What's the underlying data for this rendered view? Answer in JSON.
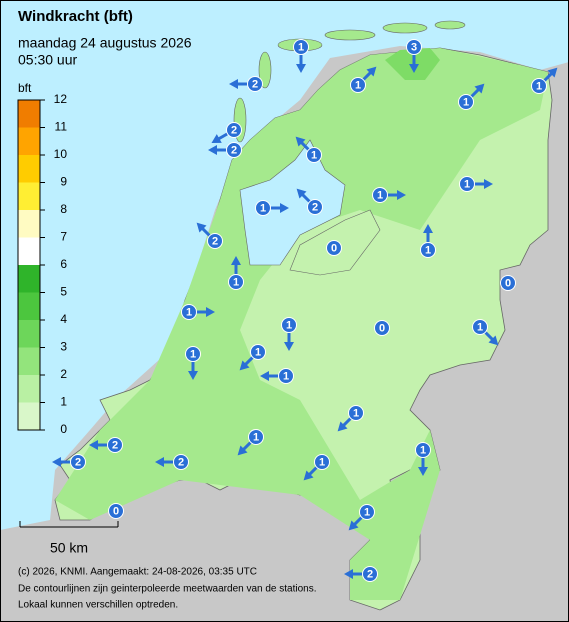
{
  "header": {
    "title": "Windkracht (bft)",
    "date": "maandag 24 augustus 2026",
    "time": "05:30 uur"
  },
  "legend": {
    "unit": "bft",
    "levels": [
      0,
      1,
      2,
      3,
      4,
      5,
      6,
      7,
      8,
      9,
      10,
      11,
      12
    ],
    "colors": [
      "#d9f7c9",
      "#b9f0a3",
      "#93e47c",
      "#6dd65a",
      "#4cc63e",
      "#2fb42a",
      "#ffffff",
      "#fffbc2",
      "#ffee33",
      "#ffcc00",
      "#ffa400",
      "#f07d00"
    ]
  },
  "scale_bar": "50 km",
  "footer": [
    "(c) 2026, KNMI. Aangemaakt: 24-08-2026, 03:35 UTC",
    "De contourlijnen zijn geinterpoleerde meetwaarden van de stations.",
    "Lokaal kunnen verschillen optreden."
  ],
  "stations": [
    {
      "value": 1,
      "direction": 180
    },
    {
      "value": 3,
      "direction": 180
    },
    {
      "value": 1,
      "direction": 45
    },
    {
      "value": 2,
      "direction": 270
    },
    {
      "value": 1,
      "direction": 45
    },
    {
      "value": 1,
      "direction": 45
    },
    {
      "value": 2,
      "direction": 240
    },
    {
      "value": 2,
      "direction": 270
    },
    {
      "value": 1,
      "direction": 315
    },
    {
      "value": 1,
      "direction": 90
    },
    {
      "value": 1,
      "direction": 90
    },
    {
      "value": 1,
      "direction": 90
    },
    {
      "value": 2,
      "direction": 315
    },
    {
      "value": 2,
      "direction": 315
    },
    {
      "value": 0,
      "direction": null
    },
    {
      "value": 1,
      "direction": 0
    },
    {
      "value": 1,
      "direction": 0
    },
    {
      "value": 0,
      "direction": null
    },
    {
      "value": 1,
      "direction": 90
    },
    {
      "value": 1,
      "direction": 180
    },
    {
      "value": 0,
      "direction": null
    },
    {
      "value": 1,
      "direction": 135
    },
    {
      "value": 1,
      "direction": 180
    },
    {
      "value": 1,
      "direction": 225
    },
    {
      "value": 1,
      "direction": 270
    },
    {
      "value": 1,
      "direction": 225
    },
    {
      "value": 2,
      "direction": 270
    },
    {
      "value": 1,
      "direction": 225
    },
    {
      "value": 1,
      "direction": 180
    },
    {
      "value": 2,
      "direction": 270
    },
    {
      "value": 2,
      "direction": 270
    },
    {
      "value": 1,
      "direction": 225
    },
    {
      "value": 1,
      "direction": 225
    },
    {
      "value": 0,
      "direction": null
    },
    {
      "value": 2,
      "direction": 270
    }
  ]
}
